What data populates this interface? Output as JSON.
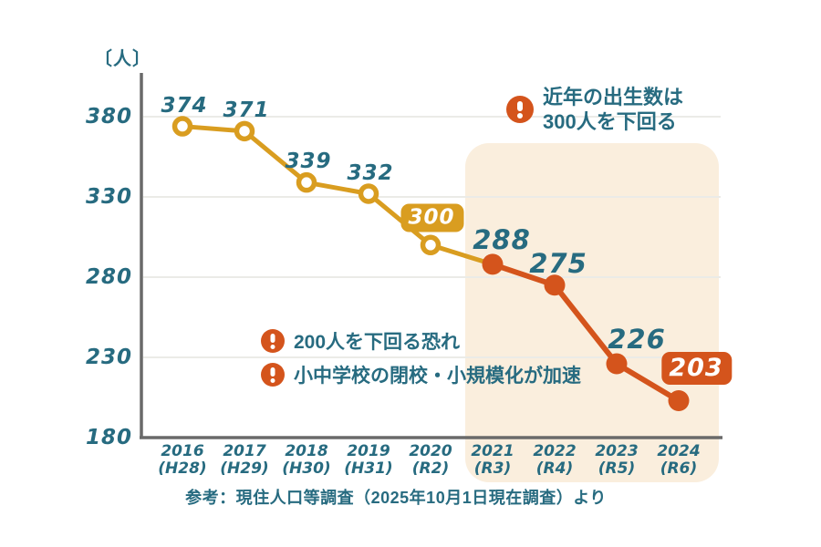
{
  "colors": {
    "teal": "#276b80",
    "golden": "#d99d20",
    "orange_red": "#d4541c",
    "highlight_cream": "#faeedd",
    "grid": "#ebebe7",
    "axis": "#6a6a6a",
    "background": "#ffffff"
  },
  "chart_data": {
    "type": "line",
    "title": "",
    "ylabel": "〔人〕",
    "xlabel": "",
    "yticks": [
      380,
      330,
      280,
      230,
      180
    ],
    "ylim": [
      180,
      395
    ],
    "grid": true,
    "categories": [
      {
        "year": "2016",
        "era": "(H28)"
      },
      {
        "year": "2017",
        "era": "(H29)"
      },
      {
        "year": "2018",
        "era": "(H30)"
      },
      {
        "year": "2019",
        "era": "(H31)"
      },
      {
        "year": "2020",
        "era": "(R2)"
      },
      {
        "year": "2021",
        "era": "(R3)"
      },
      {
        "year": "2022",
        "era": "(R4)"
      },
      {
        "year": "2023",
        "era": "(R5)"
      },
      {
        "year": "2024",
        "era": "(R6)"
      }
    ],
    "values": [
      374,
      371,
      339,
      332,
      300,
      288,
      275,
      226,
      203
    ],
    "marker_styles": [
      "open",
      "open",
      "open",
      "open",
      "open",
      "filled",
      "filled",
      "filled",
      "filled"
    ],
    "line_color_early": "#d99d20",
    "line_color_late": "#d4541c",
    "line_color_change_index": 5,
    "badge_points": [
      {
        "index": 4,
        "value": 300,
        "badge_color": "#d99d20"
      },
      {
        "index": 8,
        "value": 203,
        "badge_color": "#d4541c"
      }
    ],
    "highlight_region": {
      "from_year": "2021",
      "to_year": "2024",
      "color": "#faeedd"
    },
    "legend": []
  },
  "annotations": {
    "top": {
      "icon": "warning",
      "line1": "近年の出生数は",
      "line2": "300人を下回る"
    },
    "mid1": {
      "icon": "warning",
      "text": "200人を下回る恐れ"
    },
    "mid2": {
      "icon": "warning",
      "text": "小中学校の閉校・小規模化が加速"
    }
  },
  "source_note": "参考：現住人口等調査（2025年10月1日現在調査）より"
}
